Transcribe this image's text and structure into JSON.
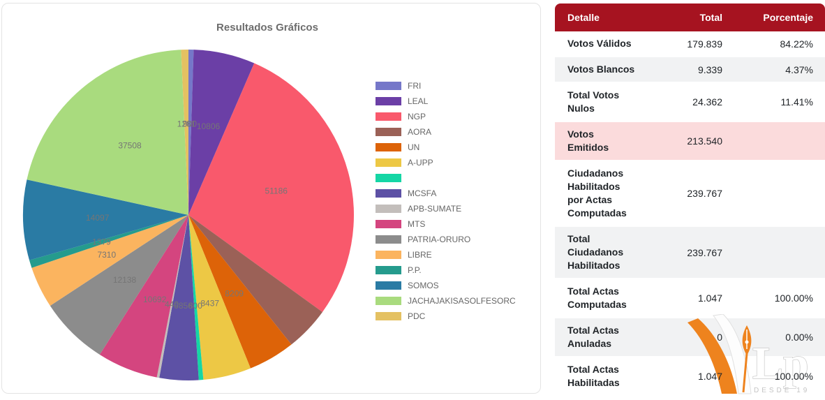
{
  "chart_data": {
    "type": "pie",
    "title": "Resultados Gráficos",
    "legend_position": "right",
    "label_color": "#757575",
    "total_valid_votes": 179839,
    "series": [
      {
        "name": "FRI",
        "value": 900,
        "color": "#7577C9",
        "label_shown": true,
        "approx": true
      },
      {
        "name": "LEAL",
        "value": 10806,
        "color": "#6B3FA6",
        "label_shown": true
      },
      {
        "name": "NGP",
        "value": 51186,
        "color": "#F9596C",
        "label_shown": true
      },
      {
        "name": "AORA",
        "value": 7800,
        "color": "#9B6157",
        "label_shown": false,
        "approx": true
      },
      {
        "name": "UN",
        "value": 8209,
        "color": "#DD6308",
        "label_shown": true
      },
      {
        "name": "A-UPP",
        "value": 8437,
        "color": "#EDC845",
        "label_shown": true
      },
      {
        "name": "",
        "value": 800,
        "color": "#15D6A5",
        "label_shown": true,
        "approx": true
      },
      {
        "name": "MCSFA",
        "value": 6856,
        "color": "#5D51A5",
        "label_shown": true
      },
      {
        "name": "APB-SUMATE",
        "value": 440,
        "color": "#C3BEBB",
        "label_shown": true,
        "approx": true
      },
      {
        "name": "MTS",
        "value": 10692,
        "color": "#D4457F",
        "label_shown": true
      },
      {
        "name": "PATRIA-ORURO",
        "value": 12138,
        "color": "#8C8C8C",
        "label_shown": true
      },
      {
        "name": "LIBRE",
        "value": 7310,
        "color": "#FBB45F",
        "label_shown": true
      },
      {
        "name": "P.P.",
        "value": 1379,
        "color": "#259B8D",
        "label_shown": true
      },
      {
        "name": "SOMOS",
        "value": 14097,
        "color": "#2A7BA4",
        "label_shown": true,
        "approx": true
      },
      {
        "name": "JACHAJAKISASOLFESORC",
        "value": 37508,
        "color": "#A9DB7E",
        "label_shown": true
      },
      {
        "name": "PDC",
        "value": 1281,
        "color": "#E4C162",
        "label_shown": true
      }
    ]
  },
  "table": {
    "headers": [
      "Detalle",
      "Total",
      "Porcentaje"
    ],
    "header_bg": "#A61320",
    "highlight_bg": "#FBDBDC",
    "stripe_bg": "#F1F2F3",
    "rows": [
      {
        "detalle_lines": [
          "Votos Válidos"
        ],
        "total": "179.839",
        "porcentaje": "84.22%",
        "bg": "white"
      },
      {
        "detalle_lines": [
          "Votos Blancos"
        ],
        "total": "9.339",
        "porcentaje": "4.37%",
        "bg": "stripe"
      },
      {
        "detalle_lines": [
          "Total Votos",
          "Nulos"
        ],
        "total": "24.362",
        "porcentaje": "11.41%",
        "bg": "white"
      },
      {
        "detalle_lines": [
          "Votos",
          "Emitidos"
        ],
        "total": "213.540",
        "porcentaje": "",
        "bg": "pink"
      },
      {
        "detalle_lines": [
          "Ciudadanos",
          "Habilitados",
          "por Actas",
          "Computadas"
        ],
        "total": "239.767",
        "porcentaje": "",
        "bg": "white"
      },
      {
        "detalle_lines": [
          "Total",
          "Ciudadanos",
          "Habilitados"
        ],
        "total": "239.767",
        "porcentaje": "",
        "bg": "stripe"
      },
      {
        "detalle_lines": [
          "Total Actas",
          "Computadas"
        ],
        "total": "1.047",
        "porcentaje": "100.00%",
        "bg": "white"
      },
      {
        "detalle_lines": [
          "Total Actas",
          "Anuladas"
        ],
        "total": "0",
        "porcentaje": "0.00%",
        "bg": "stripe"
      },
      {
        "detalle_lines": [
          "Total Actas",
          "Habilitadas"
        ],
        "total": "1.047",
        "porcentaje": "100.00%",
        "bg": "white"
      }
    ]
  },
  "watermark": {
    "letters": "Lp",
    "subtext": "DESDE 19",
    "orange": "#EE831E"
  }
}
